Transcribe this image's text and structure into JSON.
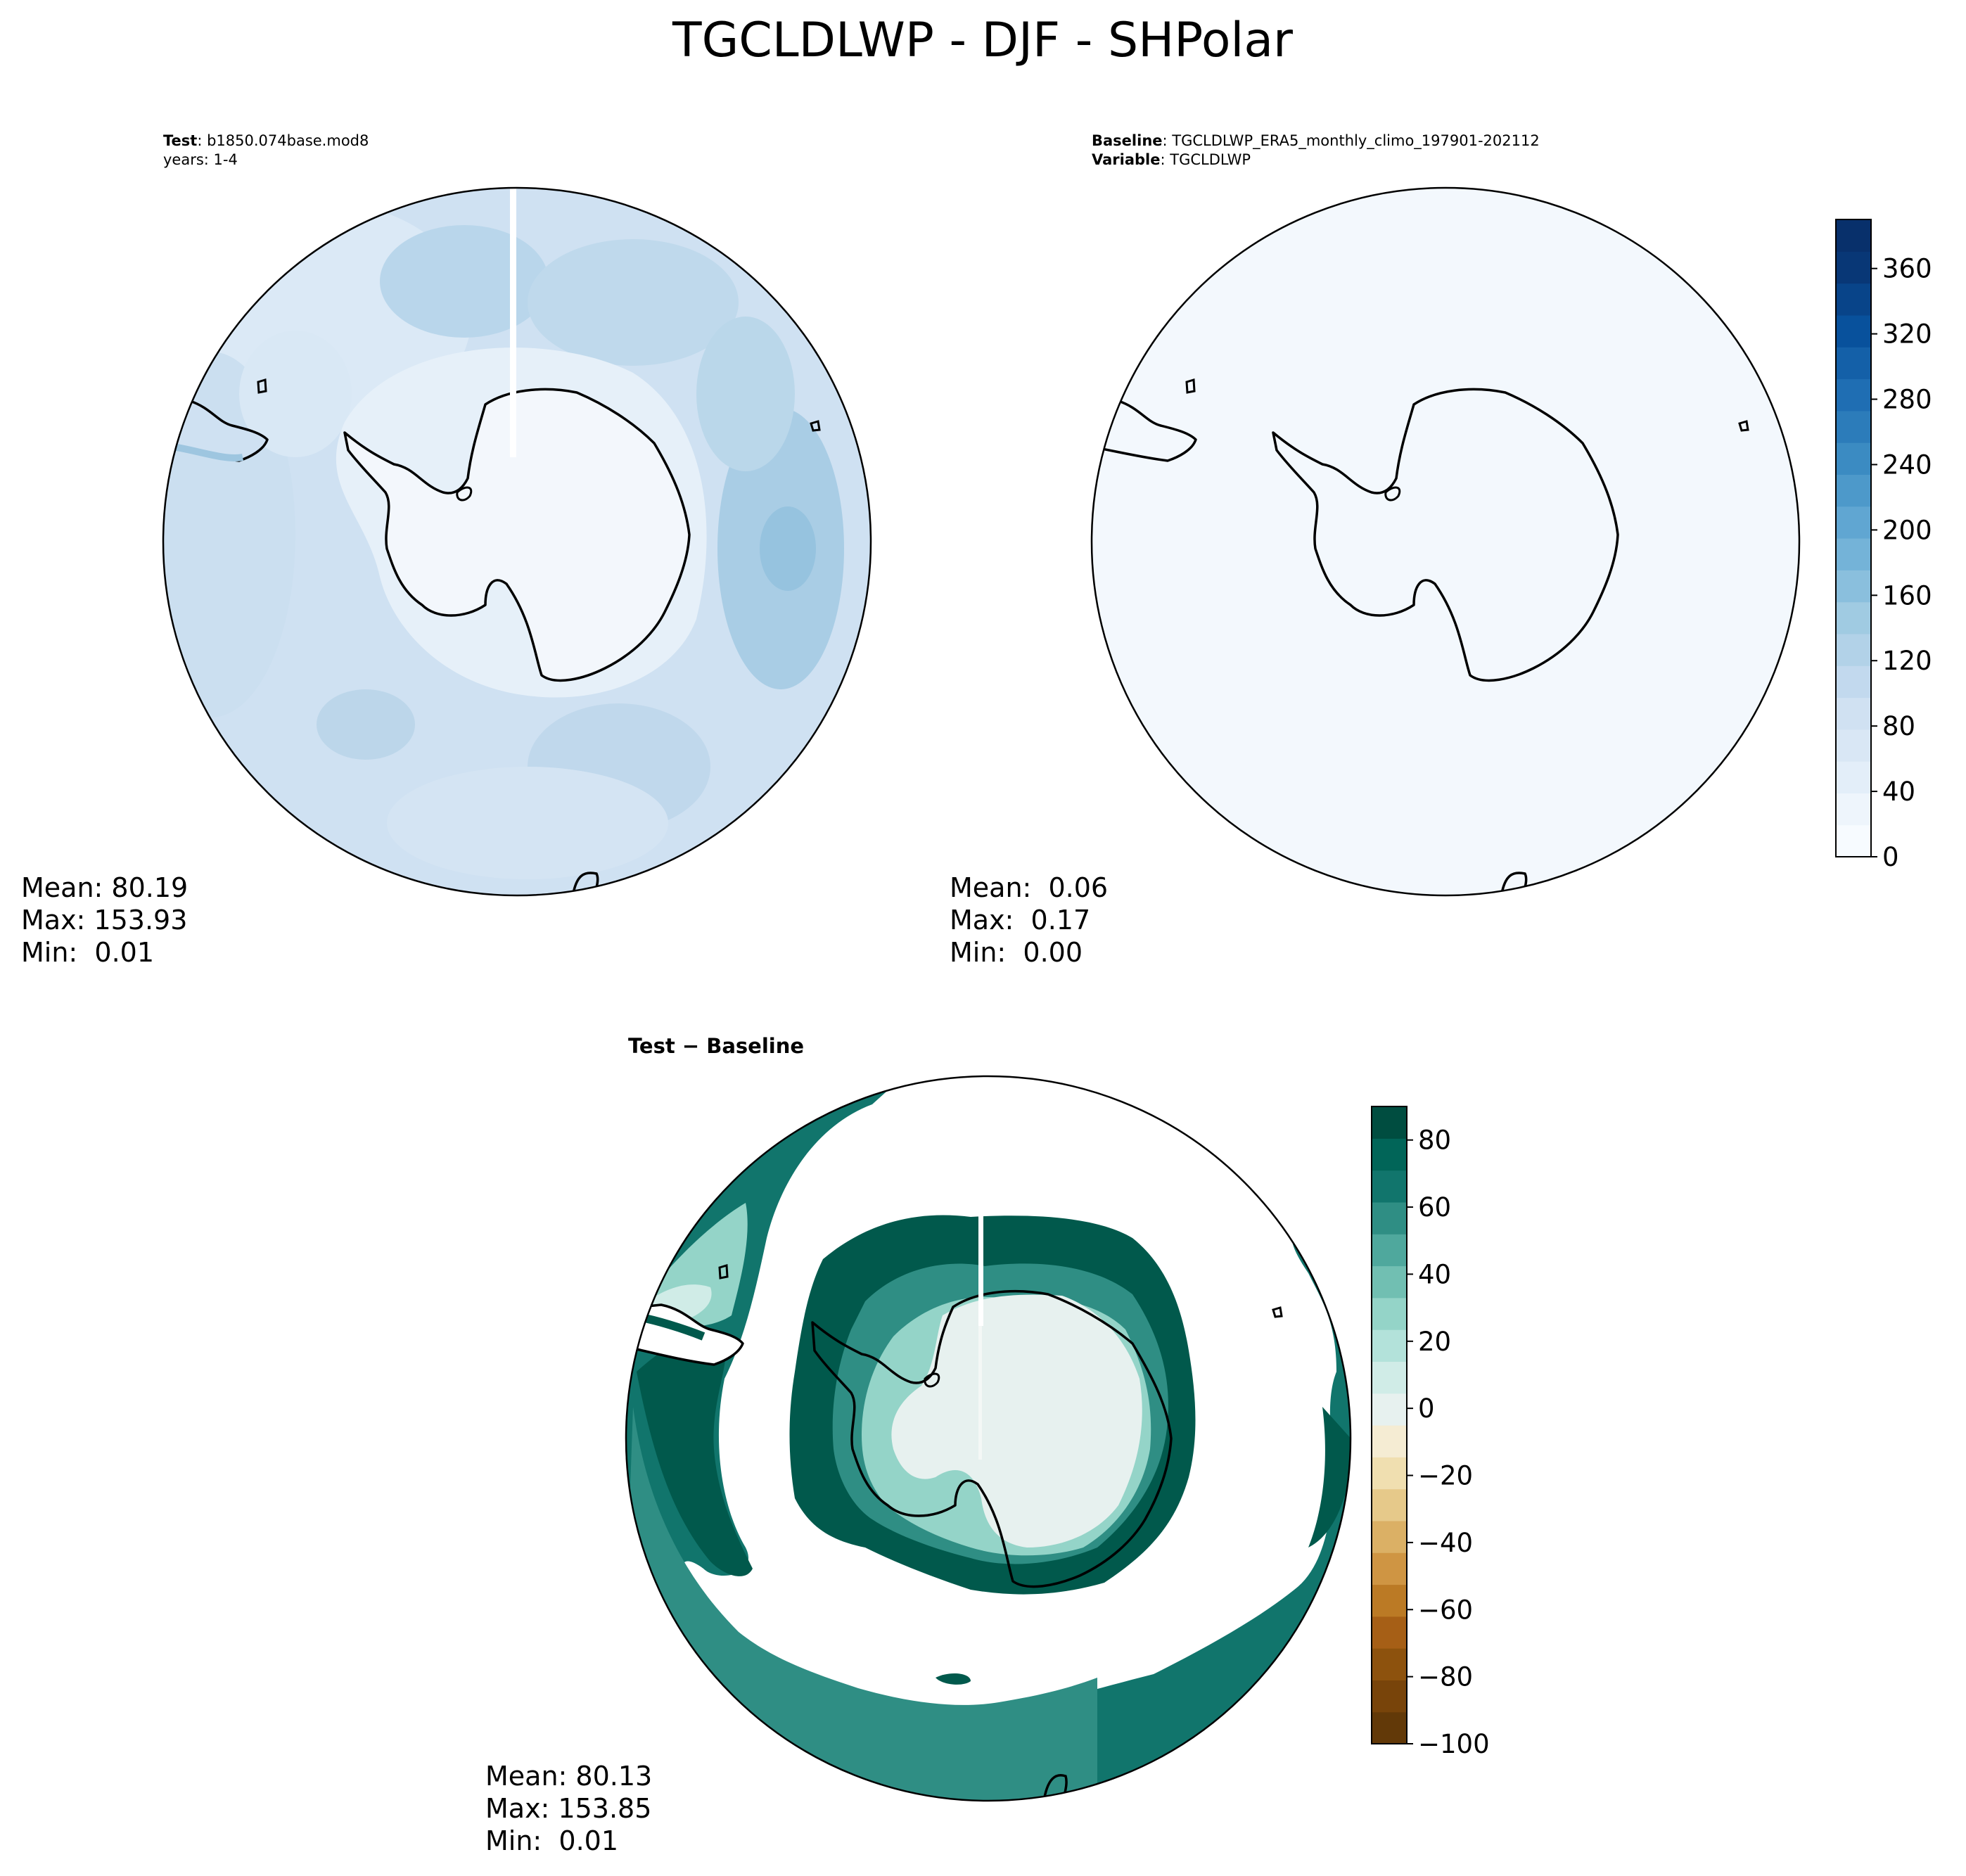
{
  "figure": {
    "title": "TGCLDLWP - DJF - SHPolar"
  },
  "panels": {
    "test": {
      "label_bold": "Test",
      "label_sep": ": ",
      "case_name": "b1850.074base.mod8",
      "years": "years: 1-4",
      "stats": {
        "mean": "Mean: 80.19",
        "max": "Max: 153.93",
        "min": "Min:  0.01"
      }
    },
    "baseline": {
      "label_bold": "Baseline",
      "label_sep": ": ",
      "case_name": "TGCLDLWP_ERA5_monthly_climo_197901-202112",
      "var_bold": "Variable",
      "var_sep": ": ",
      "variable": "TGCLDLWP",
      "stats": {
        "mean": "Mean:  0.06",
        "max": "Max:  0.17",
        "min": "Min:  0.00"
      }
    },
    "diff": {
      "label": "Test − Baseline",
      "stats": {
        "mean": "Mean: 80.13",
        "max": "Max: 153.85",
        "min": "Min:  0.01"
      }
    }
  },
  "colorbars": {
    "blues": {
      "ticks": [
        "0",
        "40",
        "80",
        "120",
        "160",
        "200",
        "240",
        "280",
        "320",
        "360"
      ],
      "range": [
        0,
        390
      ],
      "colors": [
        "#f7fbff",
        "#eef5fc",
        "#e3eef9",
        "#d9e7f5",
        "#d0e1f2",
        "#c2d9ee",
        "#b2d2e8",
        "#a0cbe2",
        "#8abfdd",
        "#74b3d8",
        "#60a6d2",
        "#4d99ca",
        "#3b8bc2",
        "#2c7cba",
        "#1f6eb3",
        "#1460a8",
        "#08519c",
        "#084489",
        "#083776",
        "#08306b"
      ]
    },
    "brbg": {
      "ticks": [
        "−100",
        "−80",
        "−60",
        "−40",
        "−20",
        "0",
        "20",
        "40",
        "60",
        "80"
      ],
      "range": [
        -100,
        90
      ],
      "colors": [
        "#623908",
        "#78440a",
        "#8d520d",
        "#a65f16",
        "#bb7a25",
        "#cf9543",
        "#dbb065",
        "#e6c98a",
        "#f0dfb0",
        "#f5ecd3",
        "#e7f1ef",
        "#d0ece7",
        "#b3e2da",
        "#94d4c8",
        "#71bfb2",
        "#4fa89d",
        "#2f8e84",
        "#11756c",
        "#016558",
        "#004d40"
      ]
    }
  },
  "colors": {
    "blues_fill": "#c9def0",
    "blues_light": "#dce9f6",
    "blues_mid": "#b2d2e8",
    "baseline_fill": "#f3f8fd",
    "antarctica_fill": "#f4f8fc",
    "teal_dark": "#01594c",
    "teal_mid": "#2f8e84",
    "teal_light": "#94d4c8",
    "teal_pale": "#e7f1ef"
  }
}
